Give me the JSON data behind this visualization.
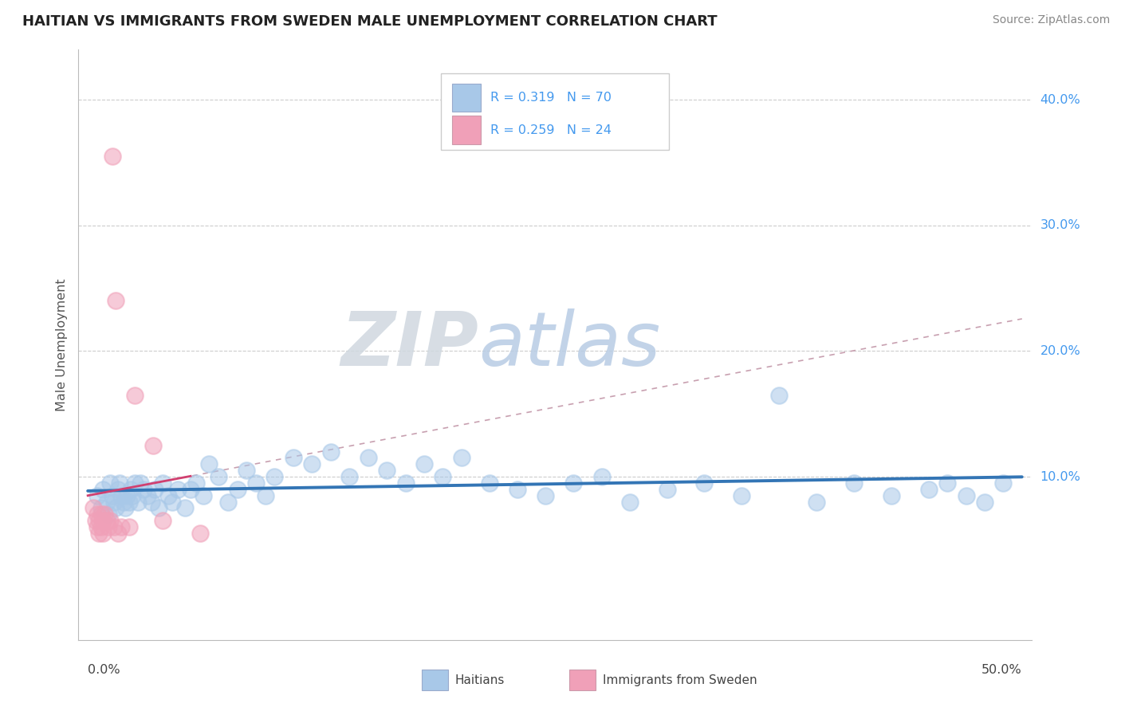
{
  "title": "HAITIAN VS IMMIGRANTS FROM SWEDEN MALE UNEMPLOYMENT CORRELATION CHART",
  "source": "Source: ZipAtlas.com",
  "ylabel": "Male Unemployment",
  "ylabel_right_ticks": [
    "40.0%",
    "30.0%",
    "20.0%",
    "10.0%"
  ],
  "ylabel_right_vals": [
    0.4,
    0.3,
    0.2,
    0.1
  ],
  "xlim": [
    0.0,
    0.5
  ],
  "ylim": [
    -0.03,
    0.44
  ],
  "blue_R": 0.319,
  "blue_N": 70,
  "pink_R": 0.259,
  "pink_N": 24,
  "blue_color": "#a8c8e8",
  "pink_color": "#f0a0b8",
  "blue_line_color": "#3375b5",
  "pink_line_color": "#d04070",
  "pink_dash_color": "#e08090"
}
